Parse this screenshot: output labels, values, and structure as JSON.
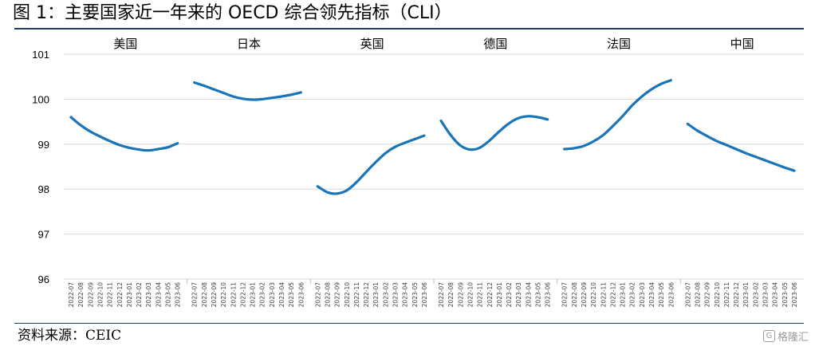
{
  "title": "图 1：主要国家近一年来的 OECD 综合领先指标（CLI）",
  "source": "资料来源：CEIC",
  "watermark": {
    "text": "格隆汇",
    "icon": "gelonghui-logo-icon"
  },
  "colors": {
    "line": "#1a74b8",
    "grid": "#d9d9d9",
    "rule": "#1f3f6a",
    "text": "#000000"
  },
  "chart_data": {
    "type": "line",
    "title": "图 1：主要国家近一年来的 OECD 综合领先指标（CLI）",
    "xlabel": "",
    "ylabel": "",
    "ylim": [
      96,
      101
    ],
    "yticks": [
      96,
      97,
      98,
      99,
      100,
      101
    ],
    "grid": true,
    "legend": "none",
    "x": [
      "2022-07",
      "2022-08",
      "2022-09",
      "2022-10",
      "2022-11",
      "2022-12",
      "2023-01",
      "2023-02",
      "2023-03",
      "2023-04",
      "2023-05",
      "2023-06"
    ],
    "panels": [
      {
        "name": "美国",
        "values": [
          99.6,
          99.42,
          99.28,
          99.17,
          99.07,
          98.98,
          98.92,
          98.88,
          98.86,
          98.89,
          98.93,
          99.02
        ]
      },
      {
        "name": "日本",
        "values": [
          100.37,
          100.3,
          100.22,
          100.14,
          100.06,
          100.01,
          99.99,
          100.0,
          100.03,
          100.06,
          100.1,
          100.15
        ]
      },
      {
        "name": "英国",
        "values": [
          98.06,
          97.93,
          97.9,
          97.97,
          98.15,
          98.38,
          98.6,
          98.8,
          98.94,
          99.03,
          99.11,
          99.19
        ]
      },
      {
        "name": "德国",
        "values": [
          99.52,
          99.2,
          98.97,
          98.88,
          98.92,
          99.08,
          99.28,
          99.46,
          99.58,
          99.62,
          99.6,
          99.55
        ]
      },
      {
        "name": "法国",
        "values": [
          98.89,
          98.91,
          98.96,
          99.06,
          99.2,
          99.4,
          99.62,
          99.86,
          100.06,
          100.22,
          100.34,
          100.42
        ]
      },
      {
        "name": "中国",
        "values": [
          99.45,
          99.3,
          99.18,
          99.07,
          98.98,
          98.89,
          98.8,
          98.72,
          98.64,
          98.56,
          98.48,
          98.41
        ]
      }
    ]
  }
}
